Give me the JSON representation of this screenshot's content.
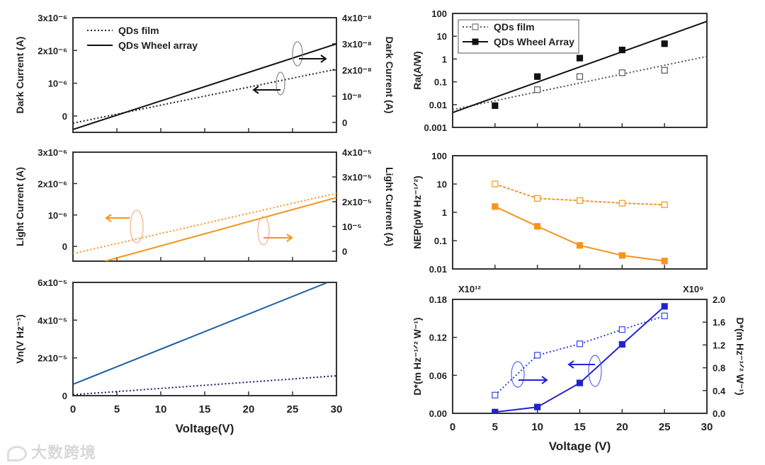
{
  "watermark": "大数跨境",
  "chart_data": [
    {
      "id": "dark-current",
      "type": "line",
      "xlim": [
        0,
        30
      ],
      "xticks": [
        0,
        5,
        10,
        15,
        20,
        25,
        30
      ],
      "xtick_labels": false,
      "xlabel": "",
      "left": {
        "label": "Dark Current (A)",
        "scale": "linear",
        "ylim": [
          -5e-07,
          3e-06
        ],
        "ticks": [
          {
            "v": 3e-06,
            "label": "3x10⁻⁶"
          },
          {
            "v": 2e-06,
            "label": "2x10⁻⁶"
          },
          {
            "v": 1e-06,
            "label": "10⁻⁶"
          },
          {
            "v": 0,
            "label": "0"
          }
        ]
      },
      "right": {
        "label": "Dark Current (A)",
        "scale": "linear",
        "ylim": [
          -3.8e-09,
          4e-08
        ],
        "ticks": [
          {
            "v": 4e-08,
            "label": "4x10⁻⁸"
          },
          {
            "v": 3e-08,
            "label": "3x10⁻⁸"
          },
          {
            "v": 2e-08,
            "label": "2x10⁻⁸"
          },
          {
            "v": 1e-08,
            "label": "10⁻⁸"
          },
          {
            "v": 0,
            "label": "0"
          }
        ]
      },
      "series": [
        {
          "name": "QDs film",
          "axis": "left",
          "style": "dotted",
          "color": "#222222",
          "marker": "none",
          "x": [
            0,
            30
          ],
          "y": [
            -2.2e-07,
            1.43e-06
          ]
        },
        {
          "name": "QDs Wheel array",
          "axis": "right",
          "style": "solid",
          "color": "#111111",
          "marker": "none",
          "x": [
            0,
            30
          ],
          "y": [
            -2.7e-09,
            3e-08
          ]
        }
      ],
      "legend": {
        "position": "top-left",
        "boxed": false
      }
    },
    {
      "id": "light-current",
      "type": "line",
      "xlim": [
        0,
        30
      ],
      "xticks": [
        0,
        5,
        10,
        15,
        20,
        25,
        30
      ],
      "xtick_labels": false,
      "xlabel": "",
      "left": {
        "label": "Light Current (A)",
        "scale": "linear",
        "ylim": [
          -4.7e-07,
          3e-06
        ],
        "ticks": [
          {
            "v": 3e-06,
            "label": "3x10⁻⁶"
          },
          {
            "v": 2e-06,
            "label": "2x10⁻⁶"
          },
          {
            "v": 1e-06,
            "label": "10⁻⁶"
          },
          {
            "v": 0,
            "label": "0"
          }
        ]
      },
      "right": {
        "label": "Light Current (A)",
        "scale": "linear",
        "ylim": [
          -4e-06,
          4e-05
        ],
        "ticks": [
          {
            "v": 4e-05,
            "label": "4x10⁻⁵"
          },
          {
            "v": 3e-05,
            "label": "3x10⁻⁵"
          },
          {
            "v": 2e-05,
            "label": "2x10⁻⁵"
          },
          {
            "v": 1e-05,
            "label": "10⁻⁵"
          },
          {
            "v": 0,
            "label": "0"
          }
        ]
      },
      "series": [
        {
          "name": "QDs film",
          "axis": "left",
          "style": "dotted",
          "color": "#f7941d",
          "marker": "none",
          "x": [
            0,
            30
          ],
          "y": [
            -2.3e-07,
            1.69e-06
          ]
        },
        {
          "name": "QDs Wheel array",
          "axis": "right",
          "style": "solid",
          "color": "#f7941d",
          "marker": "none",
          "x": [
            3.66,
            30
          ],
          "y": [
            -4e-06,
            2.17e-05
          ]
        }
      ]
    },
    {
      "id": "noise-voltage",
      "type": "line",
      "xlim": [
        0,
        30
      ],
      "xticks": [
        0,
        5,
        10,
        15,
        20,
        25,
        30
      ],
      "xtick_labels": true,
      "xlabel": "Voltage(V)",
      "left": {
        "label": "Vn(V Hz⁻¹)",
        "scale": "linear",
        "ylim": [
          0,
          6e-05
        ],
        "ticks": [
          {
            "v": 6e-05,
            "label": "6x10⁻⁵"
          },
          {
            "v": 4e-05,
            "label": "4x10⁻⁵"
          },
          {
            "v": 2e-05,
            "label": "2x10⁻⁵"
          },
          {
            "v": 0,
            "label": "0"
          }
        ]
      },
      "series": [
        {
          "name": "QDs Wheel array",
          "axis": "left",
          "style": "solid",
          "color": "#1f5fa8",
          "marker": "none",
          "x": [
            0,
            29
          ],
          "y": [
            6e-06,
            6e-05
          ]
        },
        {
          "name": "QDs film",
          "axis": "left",
          "style": "dotted",
          "color": "#1a1a6e",
          "marker": "none",
          "x": [
            0,
            30
          ],
          "y": [
            5e-07,
            1.05e-05
          ]
        }
      ]
    },
    {
      "id": "responsivity",
      "type": "scatter",
      "xlim": [
        0,
        30
      ],
      "xticks": [
        0,
        5,
        10,
        15,
        20,
        25,
        30
      ],
      "xtick_labels": false,
      "xlabel": "",
      "left": {
        "label": "Ra(A/W)",
        "scale": "log",
        "ylim": [
          0.001,
          100
        ],
        "ticks": [
          {
            "v": 100,
            "label": "100"
          },
          {
            "v": 10,
            "label": "10"
          },
          {
            "v": 1,
            "label": "1"
          },
          {
            "v": 0.1,
            "label": "0.1"
          },
          {
            "v": 0.01,
            "label": "0.01"
          },
          {
            "v": 0.001,
            "label": "0.001"
          }
        ]
      },
      "series": [
        {
          "name": "QDs film",
          "axis": "left",
          "style": "dotted",
          "color": "#555555",
          "marker": "open-square",
          "x": [
            10,
            15,
            20,
            25
          ],
          "y": [
            0.045,
            0.17,
            0.25,
            0.32
          ],
          "fit": {
            "x": [
              0,
              30
            ],
            "y": [
              0.006,
              1.3
            ]
          }
        },
        {
          "name": "QDs Wheel Array",
          "axis": "left",
          "style": "solid",
          "color": "#111111",
          "marker": "filled-square",
          "x": [
            5,
            10,
            15,
            20,
            25
          ],
          "y": [
            0.009,
            0.17,
            1.1,
            2.5,
            4.7
          ],
          "fit": {
            "x": [
              0,
              30
            ],
            "y": [
              0.0045,
              45
            ]
          }
        }
      ],
      "legend": {
        "position": "top-left",
        "boxed": true
      }
    },
    {
      "id": "nep",
      "type": "line",
      "xlim": [
        0,
        30
      ],
      "xticks": [
        0,
        5,
        10,
        15,
        20,
        25,
        30
      ],
      "xtick_labels": false,
      "xlabel": "",
      "left": {
        "label": "NEP(pW Hz⁻¹ᐟ²)",
        "scale": "log",
        "ylim": [
          0.01,
          100
        ],
        "ticks": [
          {
            "v": 100,
            "label": "100"
          },
          {
            "v": 10,
            "label": "10"
          },
          {
            "v": 1,
            "label": "1"
          },
          {
            "v": 0.1,
            "label": "0.1"
          },
          {
            "v": 0.01,
            "label": "0.01"
          }
        ]
      },
      "series": [
        {
          "name": "QDs film",
          "axis": "left",
          "style": "dashed",
          "color": "#f7941d",
          "marker": "open-square",
          "x": [
            5,
            10,
            15,
            20,
            25
          ],
          "y": [
            10,
            3.1,
            2.6,
            2.1,
            1.85
          ]
        },
        {
          "name": "QDs Wheel Array",
          "axis": "left",
          "style": "solid",
          "color": "#f7941d",
          "marker": "filled-square",
          "x": [
            5,
            10,
            15,
            20,
            25
          ],
          "y": [
            1.6,
            0.32,
            0.068,
            0.03,
            0.019
          ]
        }
      ]
    },
    {
      "id": "detectivity",
      "type": "line",
      "xlim": [
        0,
        30
      ],
      "xticks": [
        0,
        5,
        10,
        15,
        20,
        25,
        30
      ],
      "xtick_labels": true,
      "xlabel": "Voltage (V)",
      "left": {
        "label": "D*(m Hz⁻¹ᐟ² W⁻¹)",
        "multiplier": "X10¹²",
        "scale": "linear",
        "ylim": [
          0,
          0.18
        ],
        "ticks": [
          {
            "v": 0.18,
            "label": "0.18"
          },
          {
            "v": 0.12,
            "label": "0.12"
          },
          {
            "v": 0.06,
            "label": "0.06"
          },
          {
            "v": 0,
            "label": "0.00"
          }
        ]
      },
      "right": {
        "label": "D*(m Hz⁻¹ᐟ² W⁻¹)",
        "multiplier": "X10⁹",
        "scale": "linear",
        "ylim": [
          0,
          2.0
        ],
        "ticks": [
          {
            "v": 2.0,
            "label": "2.0"
          },
          {
            "v": 1.6,
            "label": "1.6"
          },
          {
            "v": 1.2,
            "label": "1.2"
          },
          {
            "v": 0.8,
            "label": "0.8"
          },
          {
            "v": 0.4,
            "label": "0.4"
          },
          {
            "v": 0,
            "label": "0.0"
          }
        ]
      },
      "series": [
        {
          "name": "QDs film",
          "axis": "right",
          "style": "dotted",
          "color": "#3344e0",
          "marker": "open-square",
          "x": [
            5,
            10,
            15,
            20,
            25
          ],
          "y": [
            0.32,
            1.02,
            1.22,
            1.47,
            1.71
          ]
        },
        {
          "name": "QDs Wheel Array",
          "axis": "left",
          "style": "solid",
          "color": "#2222cc",
          "marker": "filled-square",
          "x": [
            5,
            10,
            15,
            20,
            25
          ],
          "y": [
            0.002,
            0.01,
            0.048,
            0.109,
            0.169
          ]
        }
      ]
    }
  ]
}
